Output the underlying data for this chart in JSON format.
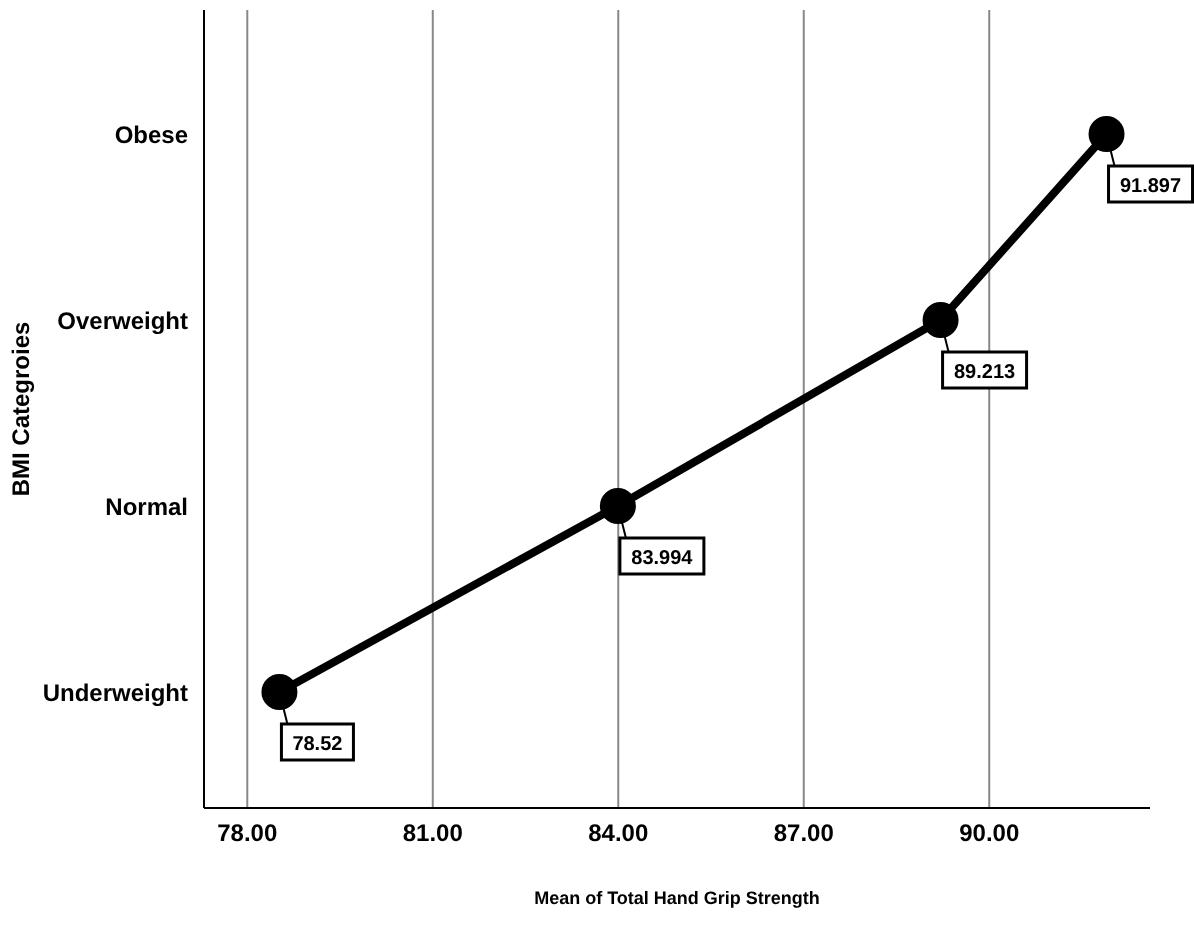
{
  "chart_data": {
    "type": "line",
    "xlabel": "Mean of Total Hand Grip Strength",
    "ylabel": "BMI Categroies",
    "categories": [
      "Obese",
      "Overweight",
      "Normal",
      "Underweight"
    ],
    "series": [
      {
        "color": "#000000",
        "values": [
          91.897,
          89.213,
          83.994,
          78.52
        ]
      }
    ],
    "orientation": "horizontal",
    "xlim": [
      77.3,
      92.6
    ],
    "xticks": [
      {
        "value": 78,
        "label": "78.00"
      },
      {
        "value": 81,
        "label": "81.00"
      },
      {
        "value": 84,
        "label": "84.00"
      },
      {
        "value": 87,
        "label": "87.00"
      },
      {
        "value": 90,
        "label": "90.00"
      }
    ],
    "grid": "x",
    "marker": "circle",
    "line_style": "solid",
    "data_labels": true
  }
}
